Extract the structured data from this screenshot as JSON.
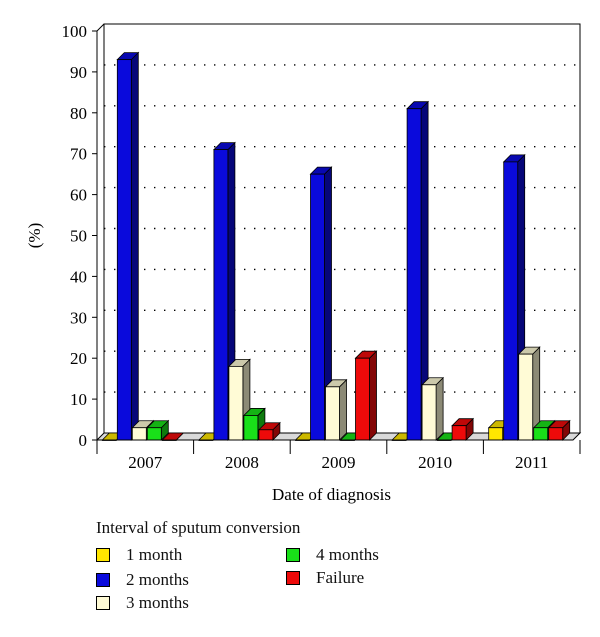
{
  "chart_data": {
    "type": "bar",
    "categories": [
      "2007",
      "2008",
      "2009",
      "2010",
      "2011"
    ],
    "series": [
      {
        "name": "1 month",
        "values": [
          0,
          0,
          0,
          0,
          3
        ],
        "color": "#ffe600"
      },
      {
        "name": "2 months",
        "values": [
          93,
          71,
          65,
          81,
          68
        ],
        "color": "#0a0adc"
      },
      {
        "name": "3 months",
        "values": [
          3,
          18,
          13,
          13.5,
          21
        ],
        "color": "#fffbd6"
      },
      {
        "name": "4 months",
        "values": [
          3,
          6,
          0,
          0,
          3
        ],
        "color": "#19e019"
      },
      {
        "name": "Failure",
        "values": [
          0,
          2.5,
          20,
          3.5,
          3
        ],
        "color": "#ee0a0a"
      }
    ],
    "xlabel": "Date of diagnosis",
    "ylabel": "(%)",
    "ylim": [
      0,
      100
    ],
    "yticks": [
      "0",
      "10",
      "20",
      "30",
      "40",
      "50",
      "60",
      "70",
      "80",
      "90",
      "100"
    ],
    "grid": "dotted horizontal",
    "legend_title": "Interval of sputum conversion",
    "legend_position": "bottom-left"
  }
}
